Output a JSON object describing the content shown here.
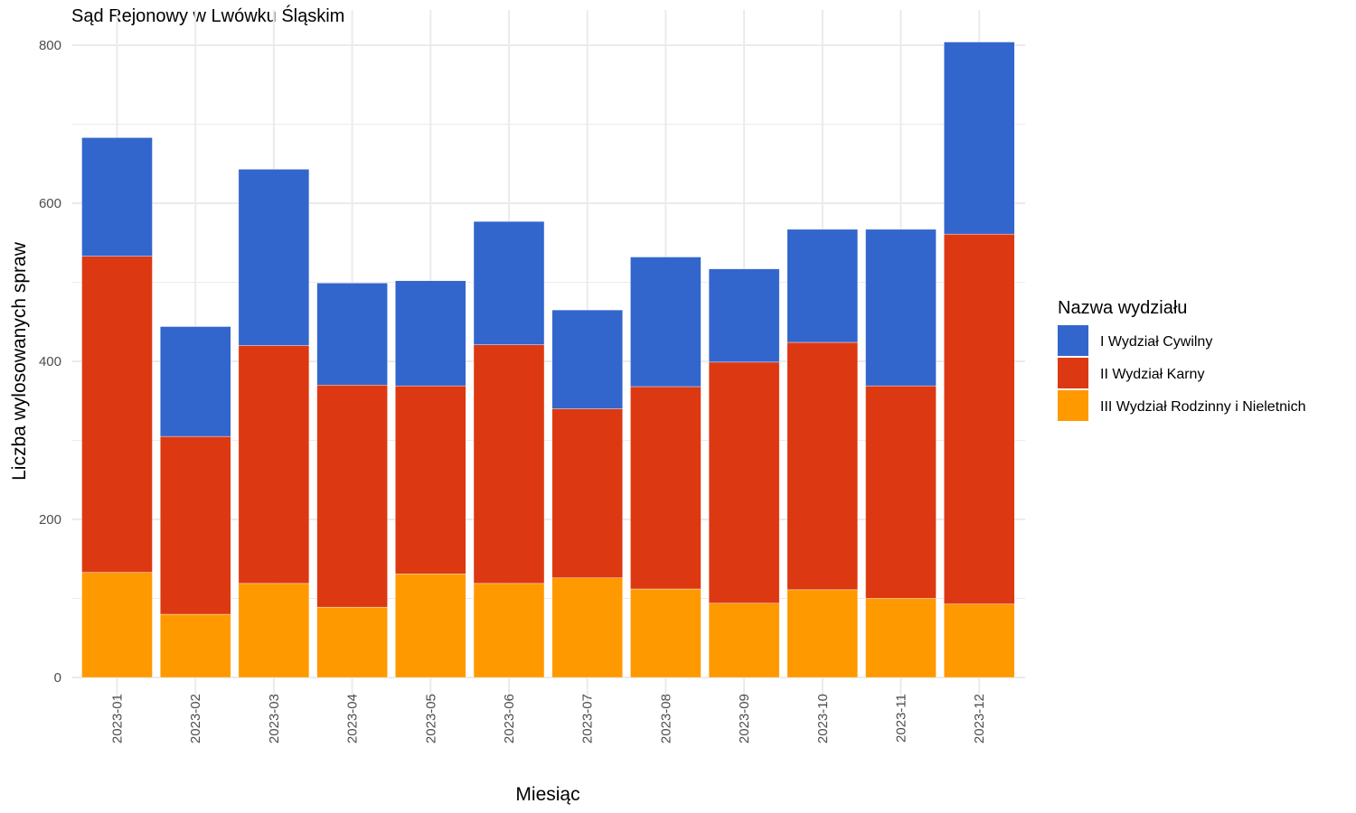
{
  "chart_data": {
    "type": "bar",
    "stacked": true,
    "title": "Sąd Rejonowy w Lwówku Śląskim",
    "xlabel": "Miesiąc",
    "ylabel": "Liczba wylosowanych spraw",
    "ylim": [
      0,
      800
    ],
    "yticks": [
      "0",
      "200",
      "400",
      "600",
      "800"
    ],
    "grid": true,
    "legend_position": "right",
    "legend_title": "Nazwa wydziału",
    "categories": [
      "2023-01",
      "2023-02",
      "2023-03",
      "2023-04",
      "2023-05",
      "2023-06",
      "2023-07",
      "2023-08",
      "2023-09",
      "2023-10",
      "2023-11",
      "2023-12"
    ],
    "series": [
      {
        "name": "III Wydział Rodzinny i Nieletnich",
        "color": "#FF9900",
        "values": [
          133,
          80,
          119,
          89,
          131,
          119,
          126,
          112,
          94,
          111,
          100,
          93
        ]
      },
      {
        "name": "II Wydział Karny",
        "color": "#DC3912",
        "values": [
          400,
          225,
          301,
          281,
          238,
          302,
          214,
          256,
          305,
          313,
          269,
          468
        ]
      },
      {
        "name": "I Wydział Cywilny",
        "color": "#3366CC",
        "values": [
          150,
          139,
          223,
          129,
          133,
          156,
          125,
          164,
          118,
          143,
          198,
          243
        ]
      }
    ]
  }
}
